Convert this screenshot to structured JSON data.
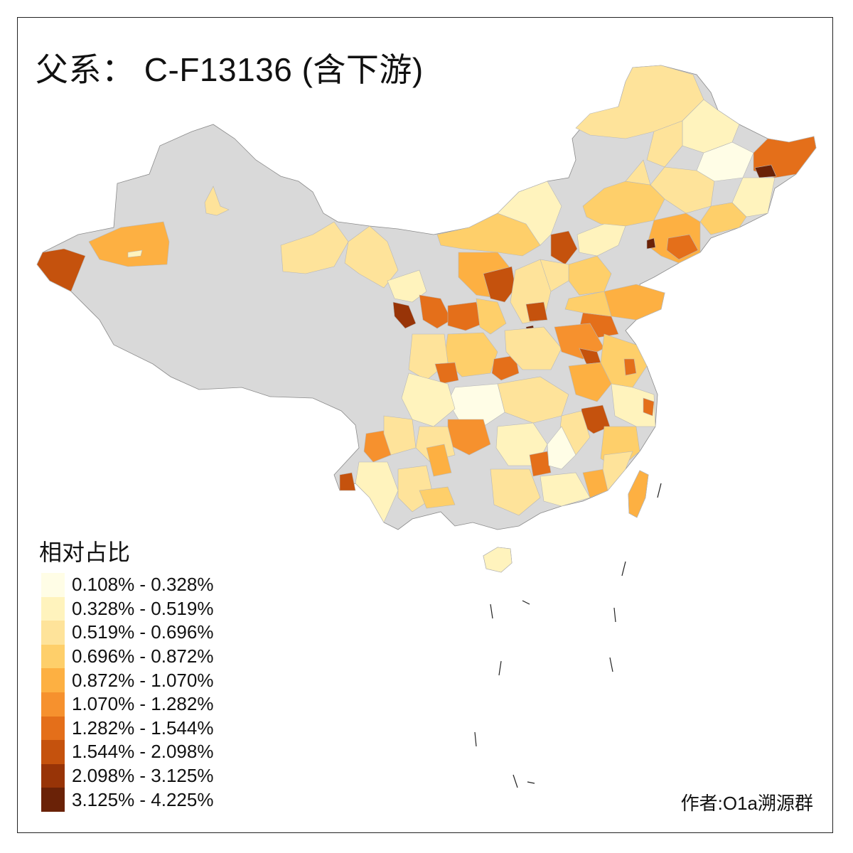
{
  "title": "父系： C-F13136 (含下游)",
  "legend": {
    "title": "相对占比",
    "classes": [
      {
        "label": "0.108% - 0.328%",
        "color": "#FFFDE6"
      },
      {
        "label": "0.328% - 0.519%",
        "color": "#FFF3BD"
      },
      {
        "label": "0.519% - 0.696%",
        "color": "#FEE39A"
      },
      {
        "label": "0.696% - 0.872%",
        "color": "#FECF6A"
      },
      {
        "label": "0.872% - 1.070%",
        "color": "#FDB042"
      },
      {
        "label": "1.070% - 1.282%",
        "color": "#F6912E"
      },
      {
        "label": "1.282% - 1.544%",
        "color": "#E46F1A"
      },
      {
        "label": "1.544% - 2.098%",
        "color": "#C5520D"
      },
      {
        "label": "2.098% - 3.125%",
        "color": "#983407"
      },
      {
        "label": "3.125% - 4.225%",
        "color": "#6A2207"
      }
    ]
  },
  "no_data_color": "#D9D9D9",
  "credit": "作者:O1a溯源群"
}
